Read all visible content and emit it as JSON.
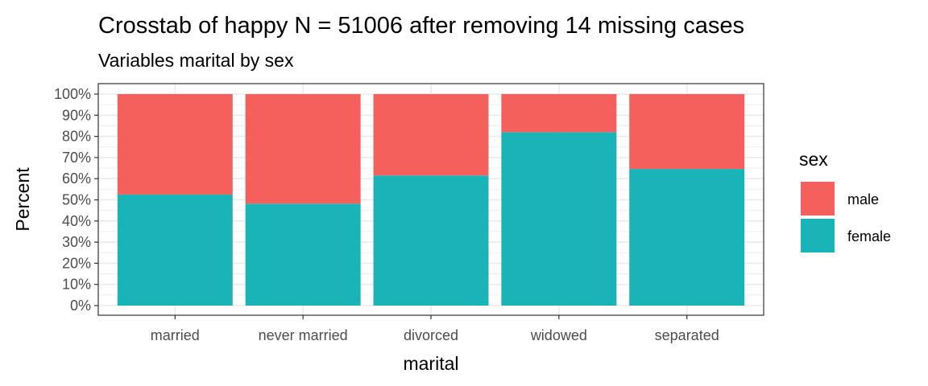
{
  "chart_data": {
    "type": "bar",
    "stacked": "percent",
    "title": "Crosstab of happy N = 51006 after removing 14 missing cases",
    "subtitle": "Variables marital by sex",
    "xlabel": "marital",
    "ylabel": "Percent",
    "ylim": [
      0,
      100
    ],
    "y_ticks": [
      "0%",
      "10%",
      "20%",
      "30%",
      "40%",
      "50%",
      "60%",
      "70%",
      "80%",
      "90%",
      "100%"
    ],
    "y_tick_values": [
      0,
      10,
      20,
      30,
      40,
      50,
      60,
      70,
      80,
      90,
      100
    ],
    "categories": [
      "married",
      "never married",
      "divorced",
      "widowed",
      "separated"
    ],
    "series": [
      {
        "name": "female",
        "color": "#19B4B8",
        "values": [
          52.5,
          48.2,
          61.5,
          82.0,
          64.6
        ]
      },
      {
        "name": "male",
        "color": "#F5605C",
        "values": [
          47.5,
          51.8,
          38.5,
          18.0,
          35.4
        ]
      }
    ],
    "legend": {
      "title": "sex",
      "position": "right",
      "entries": [
        {
          "label": "male",
          "color": "#F5605C"
        },
        {
          "label": "female",
          "color": "#19B4B8"
        }
      ]
    },
    "grid": true,
    "grid_color": "#EBEBEB",
    "panel_border_color": "#333333"
  }
}
